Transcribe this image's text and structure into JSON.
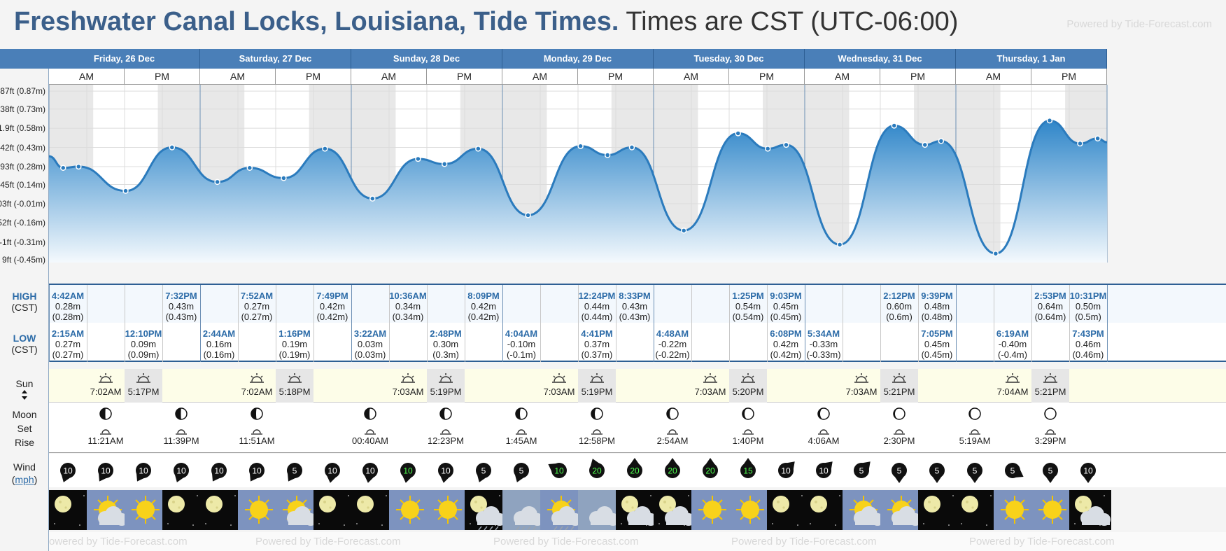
{
  "header": {
    "place": "Freshwater Canal Locks, Louisiana, Tide Times.",
    "timezone": "Times are CST (UTC-06:00)",
    "powered_by": "Powered by Tide-Forecast.com"
  },
  "days": [
    {
      "label": "Friday, 26 Dec"
    },
    {
      "label": "Saturday, 27 Dec"
    },
    {
      "label": "Sunday, 28 Dec"
    },
    {
      "label": "Monday, 29 Dec"
    },
    {
      "label": "Tuesday, 30 Dec"
    },
    {
      "label": "Wednesday, 31 Dec"
    },
    {
      "label": "Thursday, 1 Jan"
    }
  ],
  "ampm": {
    "am": "AM",
    "pm": "PM"
  },
  "labels": {
    "high": "HIGH",
    "high_tz": "(CST)",
    "low": "LOW",
    "low_tz": "(CST)",
    "sun": "Sun",
    "moon": "Moon",
    "moon_set": "Set",
    "moon_rise": "Rise",
    "wind": "Wind",
    "wind_unit": "mph"
  },
  "chart_data": {
    "type": "area",
    "title": "Freshwater Canal Locks, Louisiana, Tide Times.",
    "y_ticks": [
      {
        "value": 0.87,
        "label": "87ft (0.87m)"
      },
      {
        "value": 0.73,
        "label": "38ft (0.73m)"
      },
      {
        "value": 0.58,
        "label": "1.9ft (0.58m)"
      },
      {
        "value": 0.43,
        "label": "42ft (0.43m)"
      },
      {
        "value": 0.28,
        "label": "93ft (0.28m)"
      },
      {
        "value": 0.14,
        "label": "45ft (0.14m)"
      },
      {
        "value": -0.01,
        "label": "03ft (-0.01m)"
      },
      {
        "value": -0.16,
        "label": "52ft (-0.16m)"
      },
      {
        "value": -0.31,
        "label": "-1ft (-0.31m)"
      },
      {
        "value": -0.45,
        "label": "9ft (-0.45m)"
      }
    ],
    "ylim": [
      -0.47,
      0.92
    ],
    "series": [
      {
        "name": "Tide",
        "points": [
          {
            "t": "2025-12-26T00:00",
            "y": 0.36
          },
          {
            "t": "2025-12-26T02:15",
            "y": 0.27
          },
          {
            "t": "2025-12-26T04:42",
            "y": 0.28
          },
          {
            "t": "2025-12-26T12:10",
            "y": 0.09
          },
          {
            "t": "2025-12-26T19:32",
            "y": 0.43
          },
          {
            "t": "2025-12-27T02:44",
            "y": 0.16
          },
          {
            "t": "2025-12-27T07:52",
            "y": 0.27
          },
          {
            "t": "2025-12-27T13:16",
            "y": 0.19
          },
          {
            "t": "2025-12-27T19:49",
            "y": 0.42
          },
          {
            "t": "2025-12-28T03:22",
            "y": 0.03
          },
          {
            "t": "2025-12-28T10:36",
            "y": 0.34
          },
          {
            "t": "2025-12-28T14:48",
            "y": 0.3
          },
          {
            "t": "2025-12-28T20:09",
            "y": 0.42
          },
          {
            "t": "2025-12-29T04:04",
            "y": -0.1
          },
          {
            "t": "2025-12-29T12:24",
            "y": 0.44
          },
          {
            "t": "2025-12-29T16:41",
            "y": 0.37
          },
          {
            "t": "2025-12-29T20:33",
            "y": 0.43
          },
          {
            "t": "2025-12-30T04:48",
            "y": -0.22
          },
          {
            "t": "2025-12-30T13:25",
            "y": 0.54
          },
          {
            "t": "2025-12-30T18:08",
            "y": 0.42
          },
          {
            "t": "2025-12-30T21:03",
            "y": 0.45
          },
          {
            "t": "2025-12-31T05:34",
            "y": -0.33
          },
          {
            "t": "2025-12-31T14:12",
            "y": 0.6
          },
          {
            "t": "2025-12-31T19:05",
            "y": 0.45
          },
          {
            "t": "2025-12-31T21:39",
            "y": 0.48
          },
          {
            "t": "2026-01-01T06:19",
            "y": -0.4
          },
          {
            "t": "2026-01-01T14:53",
            "y": 0.64
          },
          {
            "t": "2026-01-01T19:43",
            "y": 0.46
          },
          {
            "t": "2026-01-01T22:31",
            "y": 0.5
          },
          {
            "t": "2026-01-02T00:00",
            "y": 0.47
          }
        ]
      }
    ],
    "sunrise_sunset": [
      {
        "rise": "2025-12-26T07:02",
        "set": "2025-12-26T17:17"
      },
      {
        "rise": "2025-12-27T07:02",
        "set": "2025-12-27T17:18"
      },
      {
        "rise": "2025-12-28T07:03",
        "set": "2025-12-28T17:19"
      },
      {
        "rise": "2025-12-29T07:03",
        "set": "2025-12-29T17:19"
      },
      {
        "rise": "2025-12-30T07:03",
        "set": "2025-12-30T17:20"
      },
      {
        "rise": "2025-12-31T07:03",
        "set": "2025-12-31T17:21"
      },
      {
        "rise": "2026-01-01T07:04",
        "set": "2026-01-01T17:21"
      }
    ]
  },
  "highs": [
    {
      "col": 0,
      "time": "4:42AM",
      "m": "0.28m",
      "alt": "(0.28m)"
    },
    {
      "col": 3,
      "time": "7:32PM",
      "m": "0.43m",
      "alt": "(0.43m)"
    },
    {
      "col": 5,
      "time": "7:52AM",
      "m": "0.27m",
      "alt": "(0.27m)"
    },
    {
      "col": 7,
      "time": "7:49PM",
      "m": "0.42m",
      "alt": "(0.42m)"
    },
    {
      "col": 9,
      "time": "10:36AM",
      "m": "0.34m",
      "alt": "(0.34m)"
    },
    {
      "col": 11,
      "time": "8:09PM",
      "m": "0.42m",
      "alt": "(0.42m)"
    },
    {
      "col": 14,
      "time": "12:24PM",
      "m": "0.44m",
      "alt": "(0.44m)"
    },
    {
      "col": 15,
      "time": "8:33PM",
      "m": "0.43m",
      "alt": "(0.43m)"
    },
    {
      "col": 18,
      "time": "1:25PM",
      "m": "0.54m",
      "alt": "(0.54m)"
    },
    {
      "col": 19,
      "time": "9:03PM",
      "m": "0.45m",
      "alt": "(0.45m)"
    },
    {
      "col": 22,
      "time": "2:12PM",
      "m": "0.60m",
      "alt": "(0.6m)"
    },
    {
      "col": 23,
      "time": "9:39PM",
      "m": "0.48m",
      "alt": "(0.48m)"
    },
    {
      "col": 26,
      "time": "2:53PM",
      "m": "0.64m",
      "alt": "(0.64m)"
    },
    {
      "col": 27,
      "time": "10:31PM",
      "m": "0.50m",
      "alt": "(0.5m)"
    }
  ],
  "lows": [
    {
      "col": 0,
      "time": "2:15AM",
      "m": "0.27m",
      "alt": "(0.27m)"
    },
    {
      "col": 2,
      "time": "12:10PM",
      "m": "0.09m",
      "alt": "(0.09m)"
    },
    {
      "col": 4,
      "time": "2:44AM",
      "m": "0.16m",
      "alt": "(0.16m)"
    },
    {
      "col": 6,
      "time": "1:16PM",
      "m": "0.19m",
      "alt": "(0.19m)"
    },
    {
      "col": 8,
      "time": "3:22AM",
      "m": "0.03m",
      "alt": "(0.03m)"
    },
    {
      "col": 10,
      "time": "2:48PM",
      "m": "0.30m",
      "alt": "(0.3m)"
    },
    {
      "col": 12,
      "time": "4:04AM",
      "m": "-0.10m",
      "alt": "(-0.1m)"
    },
    {
      "col": 14,
      "time": "4:41PM",
      "m": "0.37m",
      "alt": "(0.37m)"
    },
    {
      "col": 16,
      "time": "4:48AM",
      "m": "-0.22m",
      "alt": "(-0.22m)"
    },
    {
      "col": 19,
      "time": "6:08PM",
      "m": "0.42m",
      "alt": "(0.42m)"
    },
    {
      "col": 20,
      "time": "5:34AM",
      "m": "-0.33m",
      "alt": "(-0.33m)"
    },
    {
      "col": 23,
      "time": "7:05PM",
      "m": "0.45m",
      "alt": "(0.45m)"
    },
    {
      "col": 25,
      "time": "6:19AM",
      "m": "-0.40m",
      "alt": "(-0.4m)"
    },
    {
      "col": 27,
      "time": "7:43PM",
      "m": "0.46m",
      "alt": "(0.46m)"
    }
  ],
  "sun": [
    {
      "col": 1,
      "kind": "rise",
      "time": "7:02AM"
    },
    {
      "col": 2,
      "kind": "set",
      "time": "5:17PM"
    },
    {
      "col": 5,
      "kind": "rise",
      "time": "7:02AM"
    },
    {
      "col": 6,
      "kind": "set",
      "time": "5:18PM"
    },
    {
      "col": 9,
      "kind": "rise",
      "time": "7:03AM"
    },
    {
      "col": 10,
      "kind": "set",
      "time": "5:19PM"
    },
    {
      "col": 13,
      "kind": "rise",
      "time": "7:03AM"
    },
    {
      "col": 14,
      "kind": "set",
      "time": "5:19PM"
    },
    {
      "col": 17,
      "kind": "rise",
      "time": "7:03AM"
    },
    {
      "col": 18,
      "kind": "set",
      "time": "5:20PM"
    },
    {
      "col": 21,
      "kind": "rise",
      "time": "7:03AM"
    },
    {
      "col": 22,
      "kind": "set",
      "time": "5:21PM"
    },
    {
      "col": 25,
      "kind": "rise",
      "time": "7:04AM"
    },
    {
      "col": 26,
      "kind": "set",
      "time": "5:21PM"
    }
  ],
  "moon": [
    {
      "col": 1,
      "kind": "set",
      "time": "11:21AM",
      "phase": 0.5
    },
    {
      "col": 3,
      "kind": "rise",
      "time": "11:39PM",
      "phase": 0.5
    },
    {
      "col": 5,
      "kind": "set",
      "time": "11:51AM",
      "phase": 0.55
    },
    {
      "col": 8,
      "kind": "rise",
      "time": "00:40AM",
      "phase": 0.55
    },
    {
      "col": 10,
      "kind": "set",
      "time": "12:23PM",
      "phase": 0.6
    },
    {
      "col": 12,
      "kind": "rise",
      "time": "1:45AM",
      "phase": 0.62
    },
    {
      "col": 14,
      "kind": "set",
      "time": "12:58PM",
      "phase": 0.7
    },
    {
      "col": 16,
      "kind": "rise",
      "time": "2:54AM",
      "phase": 0.72
    },
    {
      "col": 18,
      "kind": "set",
      "time": "1:40PM",
      "phase": 0.8
    },
    {
      "col": 20,
      "kind": "rise",
      "time": "4:06AM",
      "phase": 0.82
    },
    {
      "col": 22,
      "kind": "set",
      "time": "2:30PM",
      "phase": 0.88
    },
    {
      "col": 24,
      "kind": "rise",
      "time": "5:19AM",
      "phase": 0.9
    },
    {
      "col": 26,
      "kind": "set",
      "time": "3:29PM",
      "phase": 0.96
    }
  ],
  "wind": [
    {
      "speed": "10",
      "dir": 200,
      "color": "#ffffff"
    },
    {
      "speed": "10",
      "dir": 210,
      "color": "#ffffff"
    },
    {
      "speed": "10",
      "dir": 210,
      "color": "#ffffff"
    },
    {
      "speed": "10",
      "dir": 200,
      "color": "#ffffff"
    },
    {
      "speed": "10",
      "dir": 210,
      "color": "#ffffff"
    },
    {
      "speed": "10",
      "dir": 210,
      "color": "#ffffff"
    },
    {
      "speed": "5",
      "dir": 210,
      "color": "#ffffff"
    },
    {
      "speed": "10",
      "dir": 190,
      "color": "#ffffff"
    },
    {
      "speed": "10",
      "dir": 190,
      "color": "#ffffff"
    },
    {
      "speed": "10",
      "dir": 190,
      "color": "#4cff4c"
    },
    {
      "speed": "10",
      "dir": 190,
      "color": "#ffffff"
    },
    {
      "speed": "5",
      "dir": 200,
      "color": "#ffffff"
    },
    {
      "speed": "5",
      "dir": 200,
      "color": "#ffffff"
    },
    {
      "speed": "10",
      "dir": 300,
      "color": "#4cff4c"
    },
    {
      "speed": "20",
      "dir": 340,
      "color": "#4cff4c"
    },
    {
      "speed": "20",
      "dir": 0,
      "color": "#4cff4c"
    },
    {
      "speed": "20",
      "dir": 0,
      "color": "#4cff4c"
    },
    {
      "speed": "20",
      "dir": 0,
      "color": "#4cff4c"
    },
    {
      "speed": "15",
      "dir": 0,
      "color": "#4cff4c"
    },
    {
      "speed": "10",
      "dir": 45,
      "color": "#ffffff"
    },
    {
      "speed": "10",
      "dir": 45,
      "color": "#ffffff"
    },
    {
      "speed": "5",
      "dir": 45,
      "color": "#ffffff"
    },
    {
      "speed": "5",
      "dir": 180,
      "color": "#ffffff"
    },
    {
      "speed": "5",
      "dir": 180,
      "color": "#ffffff"
    },
    {
      "speed": "5",
      "dir": 180,
      "color": "#ffffff"
    },
    {
      "speed": "5",
      "dir": 120,
      "color": "#ffffff"
    },
    {
      "speed": "5",
      "dir": 180,
      "color": "#ffffff"
    },
    {
      "speed": "10",
      "dir": 180,
      "color": "#ffffff"
    }
  ],
  "weather": [
    "moon-clear",
    "sun-cloud",
    "sun",
    "moon-clear",
    "moon-clear",
    "sun",
    "sun-cloud",
    "moon-clear",
    "moon-clear",
    "sun",
    "sun",
    "moon-cloud-rain",
    "cloud-rain",
    "sun-cloud-rain",
    "cloud",
    "moon-cloud",
    "moon-cloud",
    "sun",
    "sun",
    "moon-clear",
    "moon-clear",
    "sun-cloud",
    "sun-cloud",
    "moon-clear",
    "moon-clear",
    "sun",
    "sun",
    "moon-cloud"
  ],
  "colors": {
    "header_blue": "#4a7fb8",
    "title_blue": "#3b5f8a",
    "tide_fill_top": "#2f86c9",
    "tide_fill_bottom": "#f4f9fd",
    "tide_line": "#2b7bbd",
    "night_band": "#e8e8e8",
    "high_text": "#2d6ca8",
    "green_wind": "#4cff4c"
  }
}
